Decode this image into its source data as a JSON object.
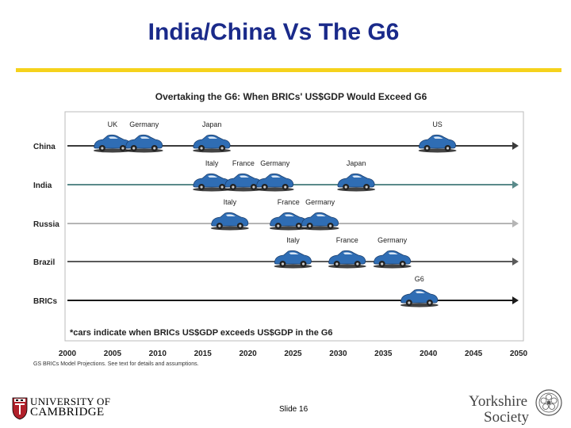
{
  "slide": {
    "title": "India/China Vs The G6",
    "number_label": "Slide 16"
  },
  "footer": {
    "university_line1": "UNIVERSITY OF",
    "university_line2": "CAMBRIDGE",
    "society_line1": "Yorkshire",
    "society_line2": "Society"
  },
  "colors": {
    "title": "#1a2a8a",
    "rule": "#f5d21c",
    "car": "#2f6db4"
  },
  "chart_data": {
    "type": "timeline",
    "title": "Overtaking the G6: When BRICs' US$GDP Would Exceed G6",
    "note": "*cars indicate when BRICs US$GDP exceeds US$GDP in the G6",
    "source": "GS BRICs Model Projections. See text for details and assumptions.",
    "xlim": [
      2000,
      2050
    ],
    "x_ticks": [
      2000,
      2005,
      2010,
      2015,
      2020,
      2025,
      2030,
      2035,
      2040,
      2045,
      2050
    ],
    "rows": [
      {
        "name": "China",
        "color": "#3a3a3a",
        "events": [
          {
            "country": "UK",
            "year": 2005
          },
          {
            "country": "Germany",
            "year": 2008.5
          },
          {
            "country": "Japan",
            "year": 2016
          },
          {
            "country": "US",
            "year": 2041
          }
        ]
      },
      {
        "name": "India",
        "color": "#5a8a8a",
        "events": [
          {
            "country": "Italy",
            "year": 2016
          },
          {
            "country": "France",
            "year": 2019.5
          },
          {
            "country": "Germany",
            "year": 2023
          },
          {
            "country": "Japan",
            "year": 2032
          }
        ]
      },
      {
        "name": "Russia",
        "color": "#b5b5b5",
        "events": [
          {
            "country": "Italy",
            "year": 2018
          },
          {
            "country": "France",
            "year": 2024.5
          },
          {
            "country": "Germany",
            "year": 2028
          }
        ]
      },
      {
        "name": "Brazil",
        "color": "#5a5a5a",
        "events": [
          {
            "country": "Italy",
            "year": 2025
          },
          {
            "country": "France",
            "year": 2031
          },
          {
            "country": "Germany",
            "year": 2036
          }
        ]
      },
      {
        "name": "BRICs",
        "color": "#1a1a1a",
        "events": [
          {
            "country": "G6",
            "year": 2039
          }
        ]
      }
    ]
  }
}
